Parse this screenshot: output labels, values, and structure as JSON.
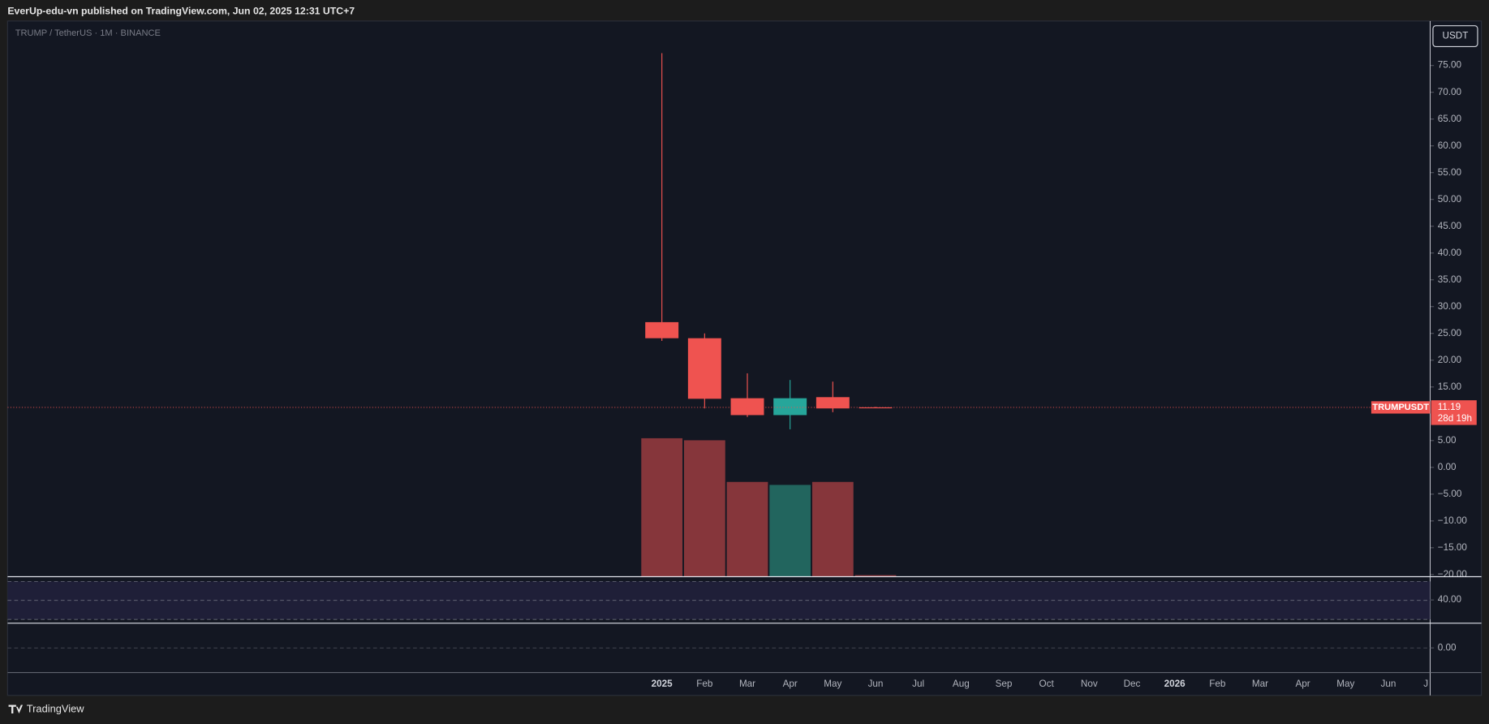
{
  "header": {
    "publisher": "EverUp-edu-vn published on TradingView.com, Jun 02, 2025 12:31 UTC+7"
  },
  "legend": "TRUMP / TetherUS · 1M · BINANCE",
  "currency_button": "USDT",
  "footer": {
    "brand": "TradingView"
  },
  "chart_data": {
    "type": "candlestick",
    "categories": [
      "2025",
      "Feb",
      "Mar",
      "Apr",
      "May",
      "Jun",
      "Jul",
      "Aug",
      "Sep",
      "Oct",
      "Nov",
      "Dec",
      "2026",
      "Feb",
      "Mar",
      "Apr",
      "May",
      "Jun",
      "J"
    ],
    "open": [
      27.1,
      24.1,
      12.9,
      9.75,
      13.1,
      11.2,
      null,
      null,
      null,
      null,
      null,
      null,
      null,
      null,
      null,
      null,
      null,
      null,
      null
    ],
    "high": [
      77.3,
      25.0,
      17.55,
      16.3,
      16.0,
      11.3,
      null,
      null,
      null,
      null,
      null,
      null,
      null,
      null,
      null,
      null,
      null,
      null,
      null
    ],
    "low": [
      23.6,
      11.0,
      9.4,
      7.1,
      10.3,
      11.1,
      null,
      null,
      null,
      null,
      null,
      null,
      null,
      null,
      null,
      null,
      null,
      null,
      null
    ],
    "close": [
      24.1,
      12.8,
      9.75,
      12.9,
      11.0,
      11.19,
      null,
      null,
      null,
      null,
      null,
      null,
      null,
      null,
      null,
      null,
      null,
      null,
      null
    ],
    "volume": [
      74.9,
      73.8,
      51.3,
      49.7,
      51.3,
      1.0,
      null,
      null,
      null,
      null,
      null,
      null,
      null,
      null,
      null,
      null,
      null,
      null,
      null
    ],
    "volume_ylim": [
      0,
      300
    ],
    "up_color": "#26a69a",
    "down_color": "#ef5350",
    "volume_up_color": "#22655e",
    "volume_down_color": "#86363b",
    "ylim": [
      -20.4,
      83.3
    ],
    "yticks": [
      {
        "value": -20,
        "label": "−20.00"
      },
      {
        "value": -15,
        "label": "−15.00"
      },
      {
        "value": -10,
        "label": "−10.00"
      },
      {
        "value": -5,
        "label": "−5.00"
      },
      {
        "value": 0,
        "label": "0.00"
      },
      {
        "value": 5,
        "label": "5.00"
      },
      {
        "value": 15,
        "label": "15.00"
      },
      {
        "value": 20,
        "label": "20.00"
      },
      {
        "value": 25,
        "label": "25.00"
      },
      {
        "value": 30,
        "label": "30.00"
      },
      {
        "value": 35,
        "label": "35.00"
      },
      {
        "value": 40,
        "label": "40.00"
      },
      {
        "value": 45,
        "label": "45.00"
      },
      {
        "value": 50,
        "label": "50.00"
      },
      {
        "value": 55,
        "label": "55.00"
      },
      {
        "value": 60,
        "label": "60.00"
      },
      {
        "value": 65,
        "label": "65.00"
      },
      {
        "value": 70,
        "label": "70.00"
      },
      {
        "value": 75,
        "label": "75.00"
      }
    ],
    "last_price": {
      "symbol": "TRUMPUSDT",
      "value": 11.19,
      "countdown": "28d 19h"
    },
    "panes": [
      {
        "ylim": [
          0,
          80
        ],
        "yticks": [
          {
            "value": 40,
            "label": "40.00"
          }
        ]
      },
      {
        "ylim": [
          -1,
          1
        ],
        "yticks": [
          {
            "value": 0,
            "label": "0.00"
          }
        ]
      }
    ],
    "grid": false
  }
}
